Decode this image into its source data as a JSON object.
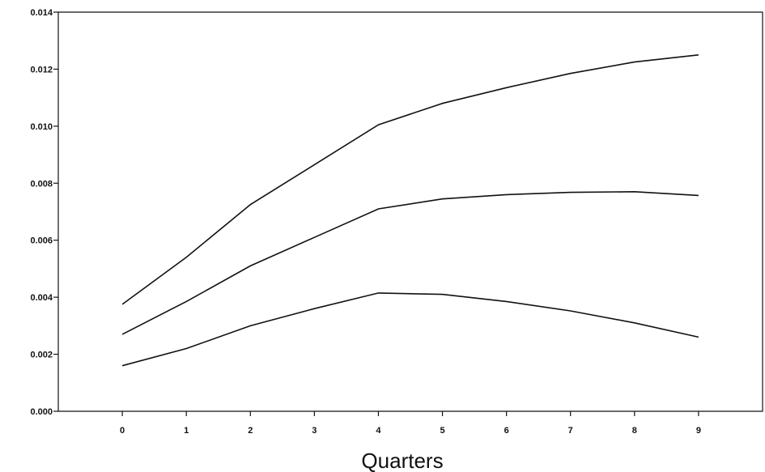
{
  "chart_data": {
    "type": "line",
    "title": "",
    "xlabel": "Quarters",
    "ylabel": "",
    "x": [
      0,
      1,
      2,
      3,
      4,
      5,
      6,
      7,
      8,
      9
    ],
    "x_tick_labels": [
      "0",
      "1",
      "2",
      "3",
      "4",
      "5",
      "6",
      "7",
      "8",
      "9"
    ],
    "y_tick_labels": [
      "0.000",
      "0.002",
      "0.004",
      "0.006",
      "0.008",
      "0.010",
      "0.012",
      "0.014"
    ],
    "y_ticks": [
      0,
      0.002,
      0.004,
      0.006,
      0.008,
      0.01,
      0.012,
      0.014
    ],
    "xlim": [
      -1,
      10
    ],
    "ylim": [
      0,
      0.014
    ],
    "grid": false,
    "legend": "none",
    "series": [
      {
        "values": [
          0.00375,
          0.0054,
          0.00725,
          0.00865,
          0.01005,
          0.0108,
          0.01135,
          0.01185,
          0.01225,
          0.0125
        ]
      },
      {
        "values": [
          0.0027,
          0.00385,
          0.0051,
          0.0061,
          0.0071,
          0.00745,
          0.0076,
          0.00768,
          0.0077,
          0.00757
        ]
      },
      {
        "values": [
          0.0016,
          0.0022,
          0.003,
          0.0036,
          0.00415,
          0.0041,
          0.00385,
          0.00352,
          0.0031,
          0.0026
        ]
      }
    ]
  }
}
